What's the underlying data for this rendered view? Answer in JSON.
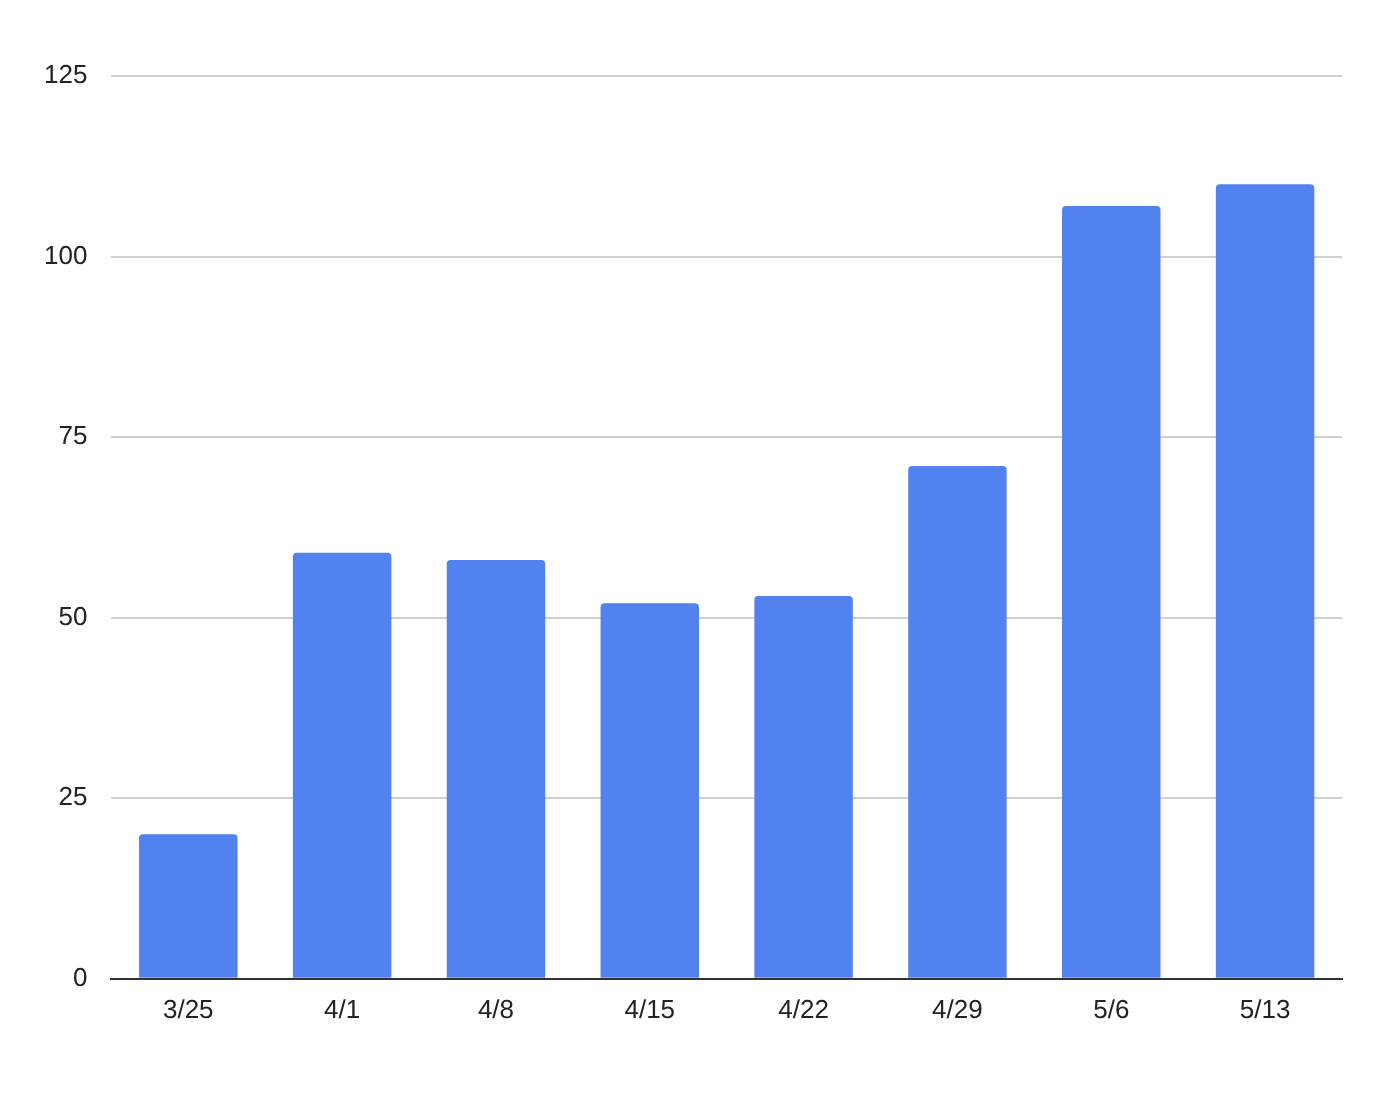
{
  "chart_data": {
    "type": "bar",
    "categories": [
      "3/25",
      "4/1",
      "4/8",
      "4/15",
      "4/22",
      "4/29",
      "5/6",
      "5/13"
    ],
    "values": [
      20,
      59,
      58,
      52,
      53,
      71,
      107,
      110
    ],
    "color": "#5282f0",
    "ylim": [
      0,
      125
    ],
    "yticks": [
      0,
      25,
      50,
      75,
      100,
      125
    ],
    "grid": "y"
  }
}
